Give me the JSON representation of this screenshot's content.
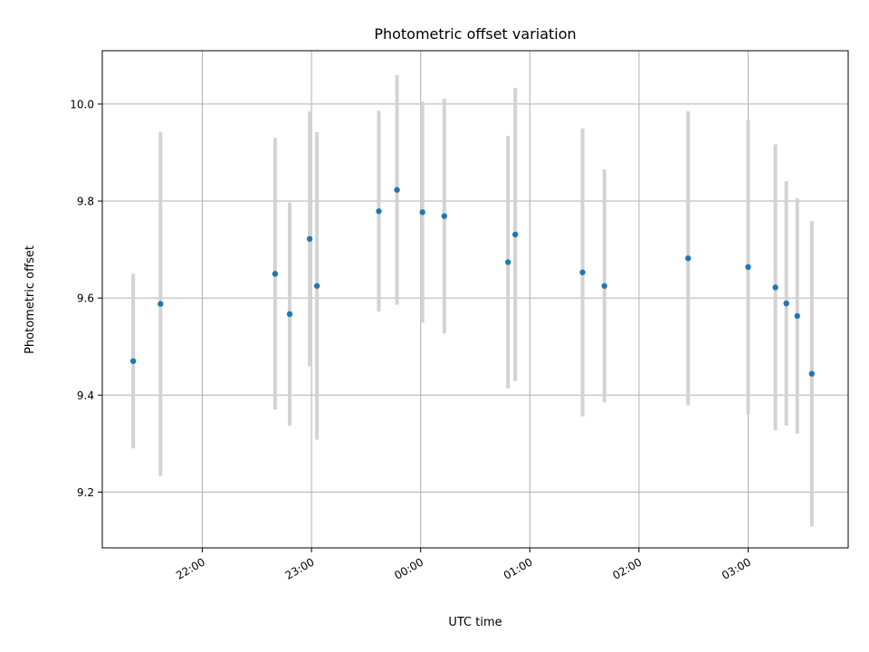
{
  "chart_data": {
    "type": "scatter",
    "title": "Photometric offset variation",
    "xlabel": "UTC time",
    "ylabel": "Photometric offset",
    "x_ticks": [
      "22:00",
      "23:00",
      "00:00",
      "01:00",
      "02:00",
      "03:00"
    ],
    "y_ticks": [
      "9.2",
      "9.4",
      "9.6",
      "9.8",
      "10.0"
    ],
    "y_tick_values": [
      9.2,
      9.4,
      9.6,
      9.8,
      10.0
    ],
    "ylim": [
      9.085,
      10.11
    ],
    "xlim": [
      "21:05",
      "03:55"
    ],
    "grid": true,
    "series": [
      {
        "marker_color": "#1f77b4",
        "errorbar_color": "#d3d3d3",
        "points": [
          {
            "x": "21:22",
            "y": 9.47,
            "yerr": 0.18
          },
          {
            "x": "21:37",
            "y": 9.588,
            "yerr": 0.355
          },
          {
            "x": "22:40",
            "y": 9.65,
            "yerr": 0.28
          },
          {
            "x": "22:48",
            "y": 9.567,
            "yerr": 0.23
          },
          {
            "x": "22:59",
            "y": 9.722,
            "yerr": 0.263
          },
          {
            "x": "23:03",
            "y": 9.625,
            "yerr": 0.317
          },
          {
            "x": "23:37",
            "y": 9.779,
            "yerr": 0.207
          },
          {
            "x": "23:47",
            "y": 9.823,
            "yerr": 0.237
          },
          {
            "x": "00:01",
            "y": 9.777,
            "yerr": 0.228
          },
          {
            "x": "00:13",
            "y": 9.769,
            "yerr": 0.242
          },
          {
            "x": "00:48",
            "y": 9.674,
            "yerr": 0.26
          },
          {
            "x": "00:52",
            "y": 9.731,
            "yerr": 0.302
          },
          {
            "x": "01:29",
            "y": 9.653,
            "yerr": 0.297
          },
          {
            "x": "01:41",
            "y": 9.625,
            "yerr": 0.24
          },
          {
            "x": "02:27",
            "y": 9.682,
            "yerr": 0.303
          },
          {
            "x": "03:00",
            "y": 9.664,
            "yerr": 0.303
          },
          {
            "x": "03:15",
            "y": 9.622,
            "yerr": 0.295
          },
          {
            "x": "03:21",
            "y": 9.589,
            "yerr": 0.252
          },
          {
            "x": "03:27",
            "y": 9.563,
            "yerr": 0.243
          },
          {
            "x": "03:35",
            "y": 9.444,
            "yerr": 0.315
          }
        ]
      }
    ]
  }
}
